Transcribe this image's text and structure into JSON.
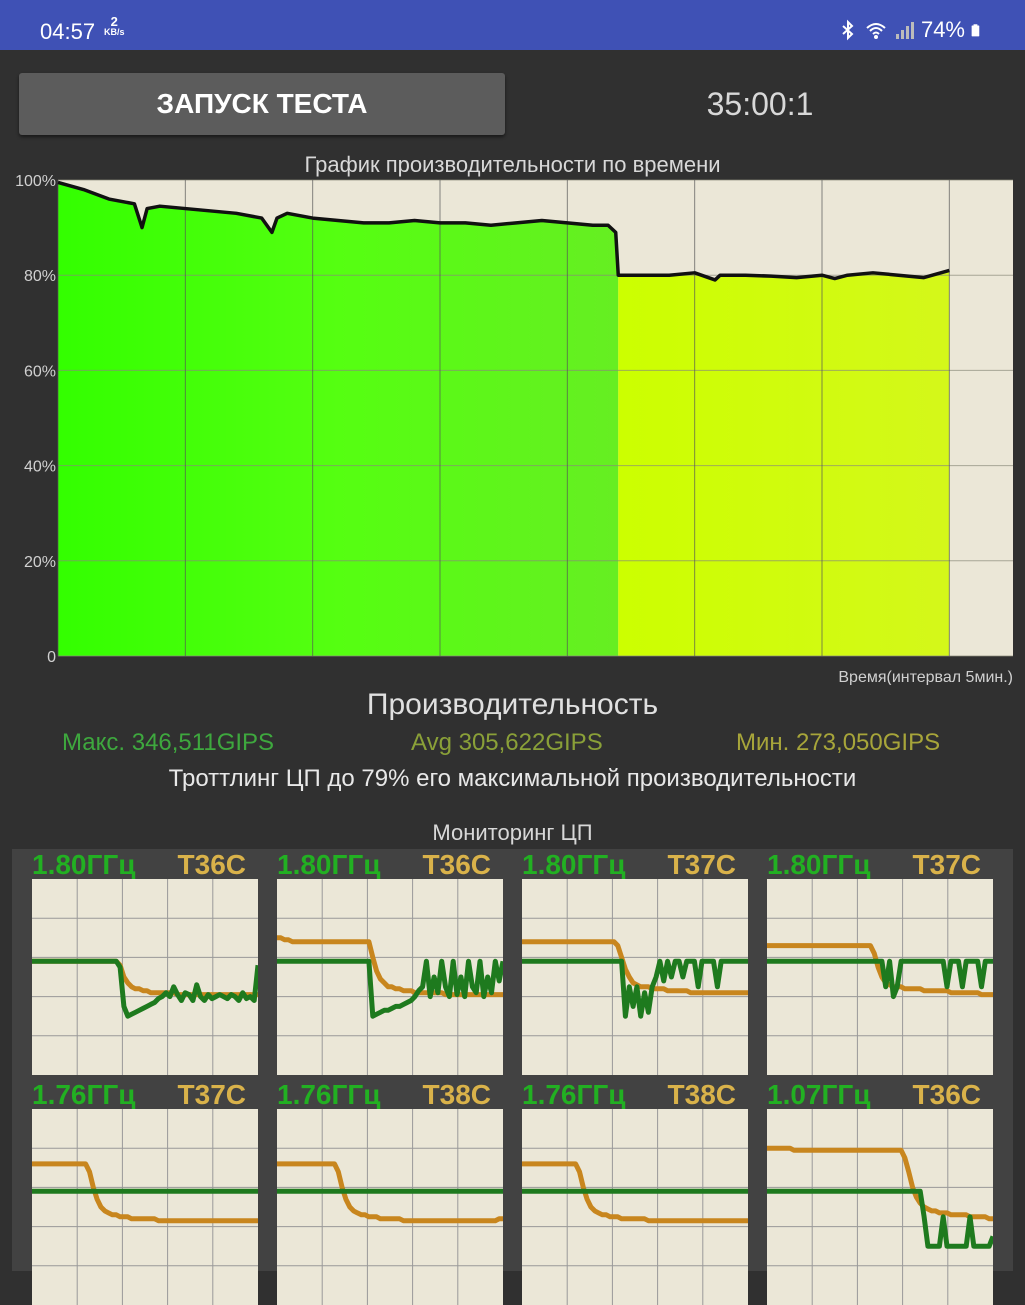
{
  "status_bar": {
    "time": "04:57",
    "net_speed_value": "2",
    "net_speed_unit": "KB/s",
    "battery": "74%",
    "icons": [
      "bluetooth-icon",
      "wifi-icon",
      "signal-icon",
      "battery-icon"
    ]
  },
  "controls": {
    "start_label": "ЗАПУСК ТЕСТА",
    "timer": "35:00:1"
  },
  "chart_data": {
    "type": "area",
    "title": "График производительности по времени",
    "xlabel": "Время(интервал 5мин.)",
    "ylabel": "",
    "y_tick_labels": [
      "100%",
      "80%",
      "60%",
      "40%",
      "20%",
      "0"
    ],
    "ylim": [
      0,
      100
    ],
    "xlim": [
      0,
      37.5
    ],
    "x_interval_minutes": 5,
    "grid": true,
    "series": [
      {
        "x": [
          0,
          1,
          2,
          3,
          3.3,
          3.5,
          4,
          5,
          6,
          7,
          8,
          8.4,
          8.6,
          9,
          10,
          11,
          12,
          13,
          14,
          15,
          16,
          17,
          18,
          19,
          20,
          21,
          21.6,
          21.9,
          22,
          23,
          24,
          25,
          25.8,
          26,
          27,
          28,
          29,
          30,
          30.5,
          31,
          32,
          33,
          34,
          35
        ],
        "values": [
          99.5,
          98,
          96,
          95,
          90,
          94,
          94.5,
          94,
          93.5,
          93,
          92,
          89,
          92,
          93,
          92,
          91.5,
          91,
          91,
          91.5,
          91,
          91,
          90.5,
          91,
          91.5,
          91,
          90.5,
          90.5,
          89,
          80,
          80,
          80,
          80.5,
          79,
          80,
          80,
          79.8,
          79.5,
          80,
          79.3,
          80,
          80.5,
          80,
          79.5,
          81
        ]
      }
    ]
  },
  "performance": {
    "title": "Производительность",
    "max": "Макс. 346,511GIPS",
    "avg": "Avg 305,622GIPS",
    "min": "Мин. 273,050GIPS",
    "throttling": "Троттлинг ЦП до 79% его максимальной производительности"
  },
  "cpu_monitor": {
    "title": "Мониторинг ЦП",
    "cores": [
      {
        "freq": "1.80ГГц",
        "temp": "T36C",
        "freq_series": [
          0.58,
          0.58,
          0.58,
          0.58,
          0.58,
          0.58,
          0.58,
          0.58,
          0.58,
          0.58,
          0.58,
          0.58,
          0.58,
          0.58,
          0.58,
          0.58,
          0.58,
          0.58,
          0.58,
          0.58,
          0.58,
          0.58,
          0.58,
          0.55,
          0.35,
          0.3,
          0.31,
          0.32,
          0.33,
          0.34,
          0.35,
          0.36,
          0.37,
          0.39,
          0.4,
          0.42,
          0.4,
          0.45,
          0.41,
          0.38,
          0.42,
          0.41,
          0.38,
          0.46,
          0.4,
          0.38,
          0.41,
          0.39,
          0.4,
          0.41,
          0.4,
          0.39,
          0.41,
          0.4,
          0.38,
          0.42,
          0.39,
          0.4,
          0.38,
          0.56
        ],
        "temp_series": [
          0.58,
          0.58,
          0.58,
          0.58,
          0.58,
          0.58,
          0.58,
          0.58,
          0.58,
          0.58,
          0.58,
          0.58,
          0.58,
          0.58,
          0.58,
          0.58,
          0.58,
          0.58,
          0.58,
          0.58,
          0.58,
          0.58,
          0.58,
          0.56,
          0.5,
          0.47,
          0.45,
          0.44,
          0.44,
          0.43,
          0.43,
          0.42,
          0.42,
          0.42,
          0.42,
          0.42,
          0.42,
          0.42,
          0.41,
          0.41,
          0.41,
          0.41,
          0.41,
          0.41,
          0.41,
          0.41,
          0.41,
          0.41,
          0.41,
          0.41,
          0.41,
          0.41,
          0.41,
          0.41,
          0.41,
          0.41,
          0.41,
          0.41,
          0.41,
          0.41
        ]
      },
      {
        "freq": "1.80ГГц",
        "temp": "T36C",
        "freq_series": [
          0.58,
          0.58,
          0.58,
          0.58,
          0.58,
          0.58,
          0.58,
          0.58,
          0.58,
          0.58,
          0.58,
          0.58,
          0.58,
          0.58,
          0.58,
          0.58,
          0.58,
          0.58,
          0.58,
          0.58,
          0.58,
          0.58,
          0.58,
          0.58,
          0.58,
          0.3,
          0.31,
          0.32,
          0.33,
          0.33,
          0.34,
          0.35,
          0.35,
          0.36,
          0.37,
          0.38,
          0.4,
          0.43,
          0.45,
          0.58,
          0.4,
          0.5,
          0.42,
          0.58,
          0.45,
          0.4,
          0.58,
          0.41,
          0.5,
          0.4,
          0.58,
          0.45,
          0.42,
          0.58,
          0.4,
          0.5,
          0.42,
          0.58,
          0.48,
          0.58
        ],
        "temp_series": [
          0.7,
          0.7,
          0.69,
          0.69,
          0.68,
          0.68,
          0.68,
          0.68,
          0.68,
          0.68,
          0.68,
          0.68,
          0.68,
          0.68,
          0.68,
          0.68,
          0.68,
          0.68,
          0.68,
          0.68,
          0.68,
          0.68,
          0.68,
          0.68,
          0.68,
          0.6,
          0.53,
          0.49,
          0.47,
          0.45,
          0.45,
          0.44,
          0.44,
          0.43,
          0.43,
          0.43,
          0.42,
          0.42,
          0.42,
          0.42,
          0.42,
          0.42,
          0.42,
          0.42,
          0.41,
          0.41,
          0.41,
          0.41,
          0.41,
          0.41,
          0.41,
          0.41,
          0.41,
          0.41,
          0.41,
          0.41,
          0.41,
          0.41,
          0.41,
          0.41
        ]
      },
      {
        "freq": "1.80ГГц",
        "temp": "T37C",
        "freq_series": [
          0.58,
          0.58,
          0.58,
          0.58,
          0.58,
          0.58,
          0.58,
          0.58,
          0.58,
          0.58,
          0.58,
          0.58,
          0.58,
          0.58,
          0.58,
          0.58,
          0.58,
          0.58,
          0.58,
          0.58,
          0.58,
          0.58,
          0.58,
          0.58,
          0.58,
          0.58,
          0.58,
          0.3,
          0.45,
          0.35,
          0.45,
          0.3,
          0.42,
          0.32,
          0.45,
          0.5,
          0.58,
          0.48,
          0.58,
          0.5,
          0.58,
          0.58,
          0.5,
          0.58,
          0.58,
          0.58,
          0.45,
          0.58,
          0.58,
          0.58,
          0.58,
          0.45,
          0.58,
          0.58,
          0.58,
          0.58,
          0.58,
          0.58,
          0.58,
          0.58
        ],
        "temp_series": [
          0.68,
          0.68,
          0.68,
          0.68,
          0.68,
          0.68,
          0.68,
          0.68,
          0.68,
          0.68,
          0.68,
          0.68,
          0.68,
          0.68,
          0.68,
          0.68,
          0.68,
          0.68,
          0.68,
          0.68,
          0.68,
          0.68,
          0.68,
          0.68,
          0.68,
          0.66,
          0.6,
          0.54,
          0.5,
          0.47,
          0.46,
          0.45,
          0.45,
          0.45,
          0.44,
          0.44,
          0.44,
          0.44,
          0.43,
          0.43,
          0.43,
          0.43,
          0.43,
          0.43,
          0.42,
          0.42,
          0.42,
          0.42,
          0.42,
          0.42,
          0.42,
          0.42,
          0.42,
          0.42,
          0.42,
          0.42,
          0.42,
          0.42,
          0.42,
          0.42
        ]
      },
      {
        "freq": "1.80ГГц",
        "temp": "T37C",
        "freq_series": [
          0.58,
          0.58,
          0.58,
          0.58,
          0.58,
          0.58,
          0.58,
          0.58,
          0.58,
          0.58,
          0.58,
          0.58,
          0.58,
          0.58,
          0.58,
          0.58,
          0.58,
          0.58,
          0.58,
          0.58,
          0.58,
          0.58,
          0.58,
          0.58,
          0.58,
          0.58,
          0.58,
          0.58,
          0.58,
          0.58,
          0.58,
          0.45,
          0.58,
          0.4,
          0.45,
          0.58,
          0.58,
          0.58,
          0.58,
          0.58,
          0.58,
          0.58,
          0.58,
          0.58,
          0.58,
          0.58,
          0.58,
          0.45,
          0.58,
          0.58,
          0.58,
          0.45,
          0.58,
          0.58,
          0.58,
          0.58,
          0.45,
          0.58,
          0.58,
          0.58
        ],
        "temp_series": [
          0.66,
          0.66,
          0.66,
          0.66,
          0.66,
          0.66,
          0.66,
          0.66,
          0.66,
          0.66,
          0.66,
          0.66,
          0.66,
          0.66,
          0.66,
          0.66,
          0.66,
          0.66,
          0.66,
          0.66,
          0.66,
          0.66,
          0.66,
          0.66,
          0.66,
          0.66,
          0.66,
          0.66,
          0.62,
          0.55,
          0.5,
          0.47,
          0.46,
          0.45,
          0.45,
          0.45,
          0.44,
          0.44,
          0.44,
          0.44,
          0.44,
          0.43,
          0.43,
          0.43,
          0.43,
          0.43,
          0.43,
          0.43,
          0.42,
          0.42,
          0.42,
          0.42,
          0.42,
          0.42,
          0.42,
          0.42,
          0.41,
          0.41,
          0.41,
          0.41
        ]
      },
      {
        "freq": "1.76ГГц",
        "temp": "T37C",
        "freq_series": [
          0.58,
          0.58,
          0.58,
          0.58,
          0.58,
          0.58,
          0.58,
          0.58,
          0.58,
          0.58,
          0.58,
          0.58,
          0.58,
          0.58,
          0.58,
          0.58,
          0.58,
          0.58,
          0.58,
          0.58,
          0.58,
          0.58,
          0.58,
          0.58,
          0.58,
          0.58,
          0.58,
          0.58,
          0.58,
          0.58,
          0.58,
          0.58,
          0.58,
          0.58,
          0.58,
          0.58,
          0.58,
          0.58,
          0.58,
          0.58,
          0.58,
          0.58,
          0.58,
          0.58,
          0.58,
          0.58,
          0.58,
          0.58,
          0.58,
          0.58,
          0.58,
          0.58,
          0.58,
          0.58,
          0.58,
          0.58,
          0.58,
          0.58,
          0.58,
          0.58
        ],
        "temp_series": [
          0.72,
          0.72,
          0.72,
          0.72,
          0.72,
          0.72,
          0.72,
          0.72,
          0.72,
          0.72,
          0.72,
          0.72,
          0.72,
          0.72,
          0.72,
          0.68,
          0.6,
          0.54,
          0.5,
          0.48,
          0.47,
          0.46,
          0.46,
          0.45,
          0.45,
          0.45,
          0.44,
          0.44,
          0.44,
          0.44,
          0.44,
          0.44,
          0.44,
          0.43,
          0.43,
          0.43,
          0.43,
          0.43,
          0.43,
          0.43,
          0.43,
          0.43,
          0.43,
          0.43,
          0.43,
          0.43,
          0.43,
          0.43,
          0.43,
          0.43,
          0.43,
          0.43,
          0.43,
          0.43,
          0.43,
          0.43,
          0.43,
          0.43,
          0.43,
          0.43
        ]
      },
      {
        "freq": "1.76ГГц",
        "temp": "T38C",
        "freq_series": [
          0.58,
          0.58,
          0.58,
          0.58,
          0.58,
          0.58,
          0.58,
          0.58,
          0.58,
          0.58,
          0.58,
          0.58,
          0.58,
          0.58,
          0.58,
          0.58,
          0.58,
          0.58,
          0.58,
          0.58,
          0.58,
          0.58,
          0.58,
          0.58,
          0.58,
          0.58,
          0.58,
          0.58,
          0.58,
          0.58,
          0.58,
          0.58,
          0.58,
          0.58,
          0.58,
          0.58,
          0.58,
          0.58,
          0.58,
          0.58,
          0.58,
          0.58,
          0.58,
          0.58,
          0.58,
          0.58,
          0.58,
          0.58,
          0.58,
          0.58,
          0.58,
          0.58,
          0.58,
          0.58,
          0.58,
          0.58,
          0.58,
          0.58,
          0.58,
          0.58
        ],
        "temp_series": [
          0.72,
          0.72,
          0.72,
          0.72,
          0.72,
          0.72,
          0.72,
          0.72,
          0.72,
          0.72,
          0.72,
          0.72,
          0.72,
          0.72,
          0.72,
          0.72,
          0.68,
          0.6,
          0.54,
          0.5,
          0.48,
          0.47,
          0.46,
          0.46,
          0.45,
          0.45,
          0.45,
          0.44,
          0.44,
          0.44,
          0.44,
          0.44,
          0.44,
          0.43,
          0.43,
          0.43,
          0.43,
          0.43,
          0.43,
          0.43,
          0.43,
          0.43,
          0.43,
          0.43,
          0.43,
          0.43,
          0.43,
          0.43,
          0.43,
          0.43,
          0.43,
          0.43,
          0.43,
          0.43,
          0.43,
          0.43,
          0.43,
          0.43,
          0.44,
          0.44
        ]
      },
      {
        "freq": "1.76ГГц",
        "temp": "T38C",
        "freq_series": [
          0.58,
          0.58,
          0.58,
          0.58,
          0.58,
          0.58,
          0.58,
          0.58,
          0.58,
          0.58,
          0.58,
          0.58,
          0.58,
          0.58,
          0.58,
          0.58,
          0.58,
          0.58,
          0.58,
          0.58,
          0.58,
          0.58,
          0.58,
          0.58,
          0.58,
          0.58,
          0.58,
          0.58,
          0.58,
          0.58,
          0.58,
          0.58,
          0.58,
          0.58,
          0.58,
          0.58,
          0.58,
          0.58,
          0.58,
          0.58,
          0.58,
          0.58,
          0.58,
          0.58,
          0.58,
          0.58,
          0.58,
          0.58,
          0.58,
          0.58,
          0.58,
          0.58,
          0.58,
          0.58,
          0.58,
          0.58,
          0.58,
          0.58,
          0.58,
          0.58
        ],
        "temp_series": [
          0.72,
          0.72,
          0.72,
          0.72,
          0.72,
          0.72,
          0.72,
          0.72,
          0.72,
          0.72,
          0.72,
          0.72,
          0.72,
          0.72,
          0.72,
          0.68,
          0.6,
          0.54,
          0.5,
          0.48,
          0.47,
          0.46,
          0.46,
          0.45,
          0.45,
          0.45,
          0.44,
          0.44,
          0.44,
          0.44,
          0.44,
          0.44,
          0.44,
          0.43,
          0.43,
          0.43,
          0.43,
          0.43,
          0.43,
          0.43,
          0.43,
          0.43,
          0.43,
          0.43,
          0.43,
          0.43,
          0.43,
          0.43,
          0.43,
          0.43,
          0.43,
          0.43,
          0.43,
          0.43,
          0.43,
          0.43,
          0.43,
          0.43,
          0.43,
          0.43
        ]
      },
      {
        "freq": "1.07ГГц",
        "temp": "T36C",
        "freq_series": [
          0.58,
          0.58,
          0.58,
          0.58,
          0.58,
          0.58,
          0.58,
          0.58,
          0.58,
          0.58,
          0.58,
          0.58,
          0.58,
          0.58,
          0.58,
          0.58,
          0.58,
          0.58,
          0.58,
          0.58,
          0.58,
          0.58,
          0.58,
          0.58,
          0.58,
          0.58,
          0.58,
          0.58,
          0.58,
          0.58,
          0.58,
          0.58,
          0.58,
          0.58,
          0.58,
          0.58,
          0.58,
          0.58,
          0.58,
          0.58,
          0.58,
          0.45,
          0.3,
          0.3,
          0.3,
          0.3,
          0.45,
          0.3,
          0.3,
          0.3,
          0.3,
          0.3,
          0.3,
          0.45,
          0.3,
          0.3,
          0.3,
          0.3,
          0.3,
          0.35
        ],
        "temp_series": [
          0.8,
          0.8,
          0.8,
          0.8,
          0.8,
          0.8,
          0.8,
          0.79,
          0.79,
          0.79,
          0.79,
          0.79,
          0.79,
          0.79,
          0.79,
          0.79,
          0.79,
          0.79,
          0.79,
          0.79,
          0.79,
          0.79,
          0.79,
          0.79,
          0.79,
          0.79,
          0.79,
          0.79,
          0.79,
          0.79,
          0.79,
          0.79,
          0.79,
          0.79,
          0.79,
          0.79,
          0.75,
          0.68,
          0.6,
          0.55,
          0.52,
          0.5,
          0.49,
          0.48,
          0.48,
          0.47,
          0.47,
          0.47,
          0.46,
          0.46,
          0.46,
          0.46,
          0.46,
          0.45,
          0.45,
          0.45,
          0.45,
          0.45,
          0.44,
          0.44
        ]
      }
    ]
  },
  "colors": {
    "status_bar": "#3f51b5",
    "background": "#303030",
    "chart_bg": "#ebe7d7",
    "area_green": "#33ff00",
    "area_yellow": "#ccff00",
    "freq_line": "#1e7a1e",
    "temp_line": "#c8861e"
  }
}
